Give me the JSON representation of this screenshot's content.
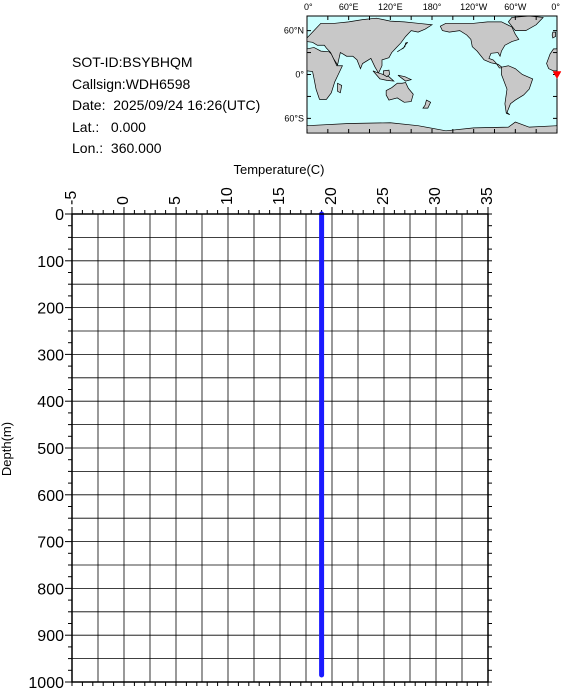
{
  "info": {
    "sot_id": "SOT-ID:BSYBHQM",
    "callsign": "Callsign:WDH6598",
    "date": "Date:  2025/09/24 16:26(UTC)",
    "lat": "Lat.:   0.000",
    "lon": "Lon.:  360.000"
  },
  "map": {
    "lon_labels": [
      "0°",
      "60°E",
      "120°E",
      "180°",
      "120°W",
      "60°W",
      "0°"
    ],
    "lat_labels": [
      "60°N",
      "0°",
      "60°S"
    ],
    "ocean_color": "#ccffff",
    "land_color": "#c8c8c8",
    "marker_color": "#ff0000",
    "marker_lon": 360,
    "marker_lat": 0
  },
  "chart_data": {
    "type": "line",
    "xlabel": "Temperature(C)",
    "ylabel": "Depth(m)",
    "xlim": [
      -5,
      35
    ],
    "ylim": [
      1000,
      0
    ],
    "x_ticks": [
      "-5",
      "0",
      "5",
      "10",
      "15",
      "20",
      "25",
      "30",
      "35"
    ],
    "y_ticks": [
      "0",
      "100",
      "200",
      "300",
      "400",
      "500",
      "600",
      "700",
      "800",
      "900",
      "1000"
    ],
    "grid": true,
    "line_color": "#1a1aff",
    "series": [
      {
        "depth": [
          0,
          100,
          200,
          300,
          400,
          500,
          600,
          700,
          800,
          900,
          985
        ],
        "temperature": [
          19.0,
          19.0,
          19.0,
          19.0,
          19.0,
          19.0,
          19.0,
          19.0,
          19.0,
          19.0,
          19.0
        ]
      }
    ]
  }
}
